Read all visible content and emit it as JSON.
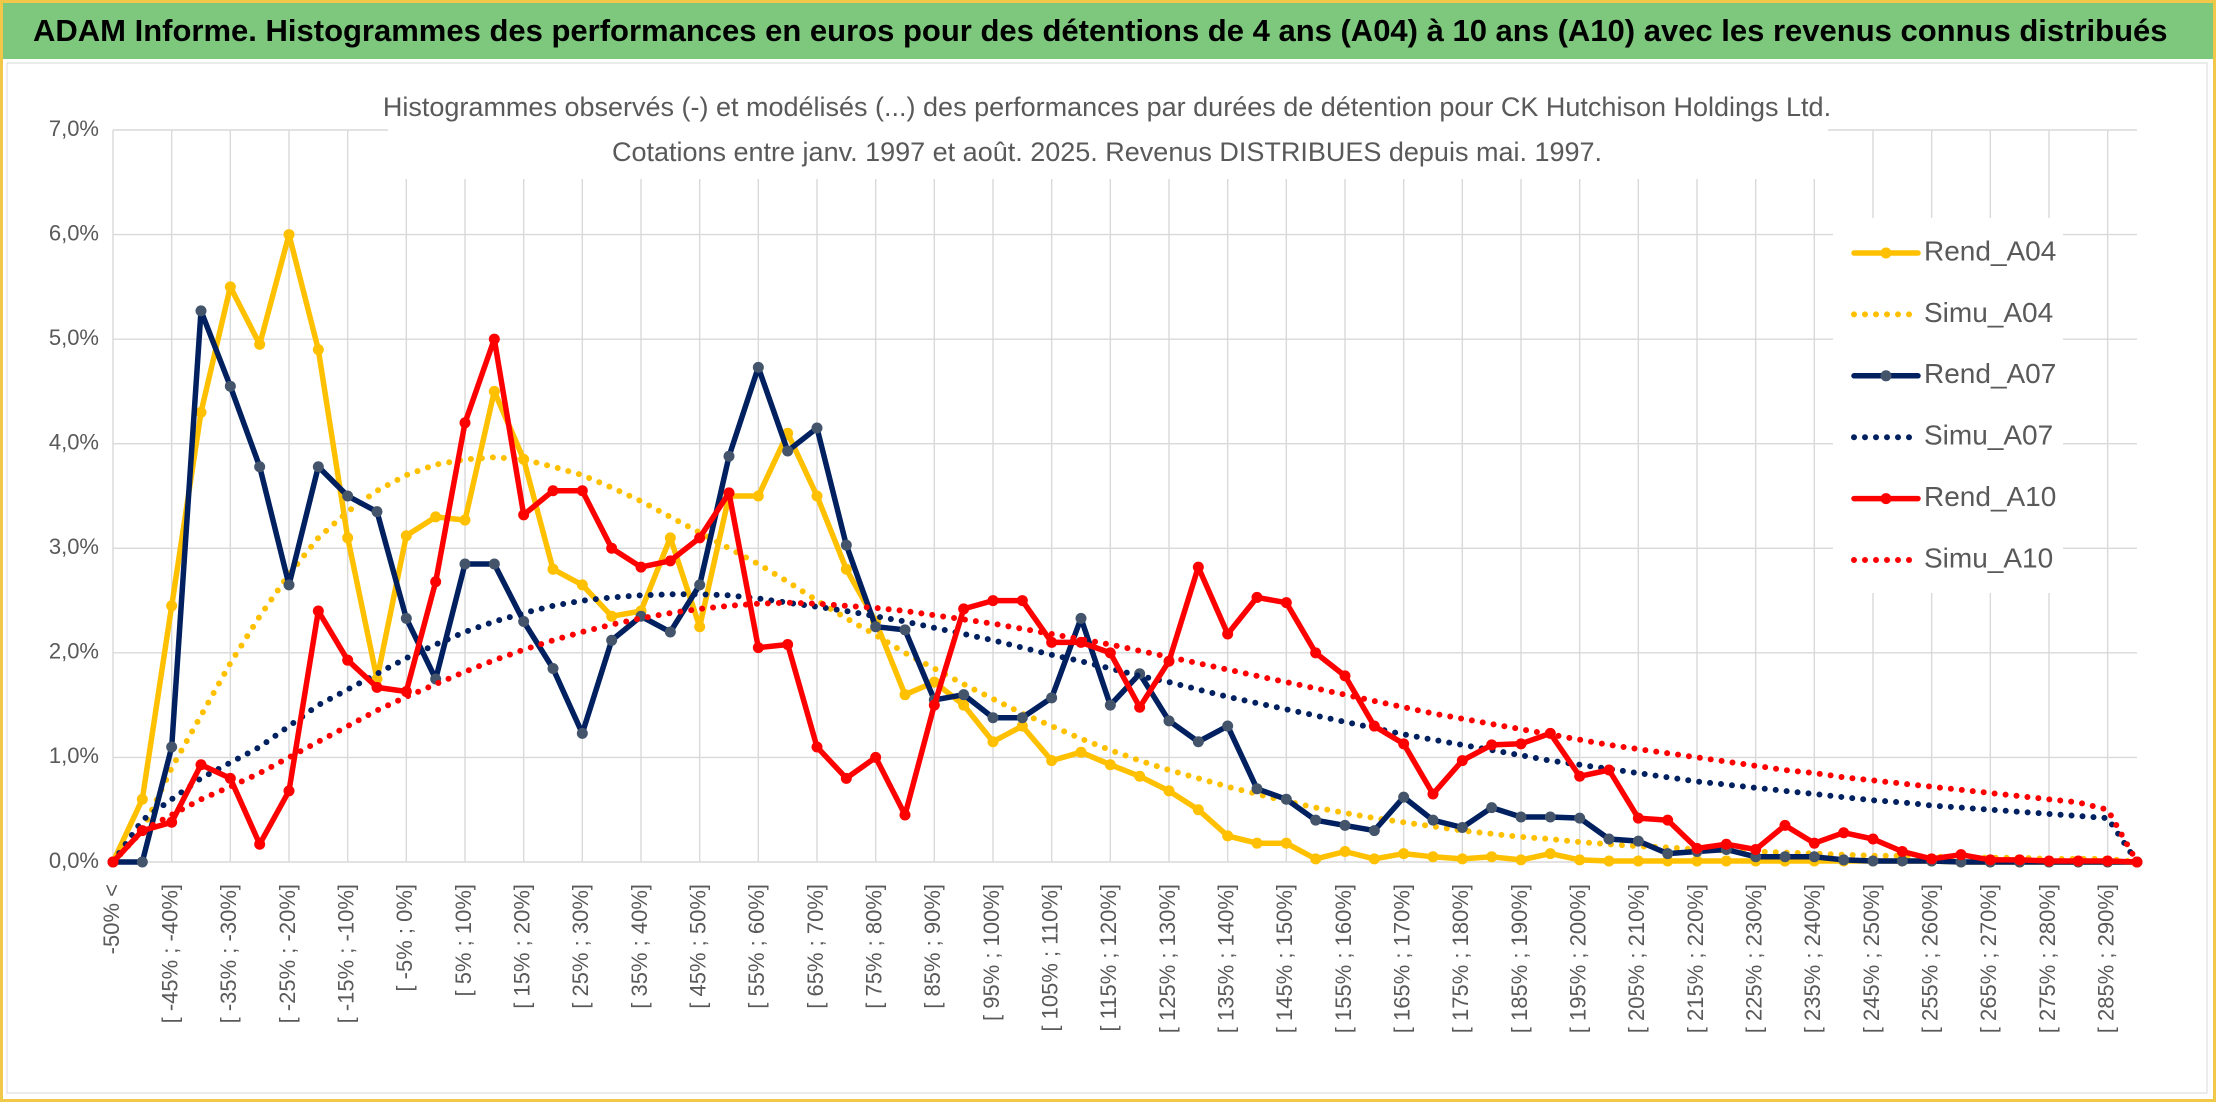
{
  "header": {
    "title": "ADAM Informe. Histogrammes des performances en euros pour des détentions de 4 ans (A04) à 10 ans (A10) avec les revenus connus distribués"
  },
  "chart_data": {
    "type": "line",
    "title": "Histogrammes observés (-) et modélisés (...) des performances par durées de détention pour CK Hutchison Holdings Ltd.",
    "subtitle": "Cotations entre janv. 1997 et août. 2025. Revenus DISTRIBUES depuis mai. 1997.",
    "categories": [
      "-50% <",
      null,
      "[ -45% ; -40%]",
      null,
      "[ -35% ; -30%]",
      null,
      "[ -25% ; -20%]",
      null,
      "[ -15% ; -10%]",
      null,
      "[ -5% ; 0%]",
      null,
      "[ 5% ; 10%]",
      null,
      "[ 15% ; 20%]",
      null,
      "[ 25% ; 30%]",
      null,
      "[ 35% ; 40%]",
      null,
      "[ 45% ; 50%]",
      null,
      "[ 55% ; 60%]",
      null,
      "[ 65% ; 70%]",
      null,
      "[ 75% ; 80%]",
      null,
      "[ 85% ; 90%]",
      null,
      "[ 95% ; 100%]",
      null,
      "[ 105% ; 110%]",
      null,
      "[ 115% ; 120%]",
      null,
      "[ 125% ; 130%]",
      null,
      "[ 135% ; 140%]",
      null,
      "[ 145% ; 150%]",
      null,
      "[ 155% ; 160%]",
      null,
      "[ 165% ; 170%]",
      null,
      "[ 175% ; 180%]",
      null,
      "[ 185% ; 190%]",
      null,
      "[ 195% ; 200%]",
      null,
      "[ 205% ; 210%]",
      null,
      "[ 215% ; 220%]",
      null,
      "[ 225% ; 230%]",
      null,
      "[ 235% ; 240%]",
      null,
      "[ 245% ; 250%]",
      null,
      "[ 255% ; 260%]",
      null,
      "[ 265% ; 270%]",
      null,
      "[ 275% ; 280%]",
      null,
      "[ 285% ; 290%]",
      null
    ],
    "series": [
      {
        "name": "Rend_A04",
        "color": "#FFC000",
        "style": "solid",
        "values": [
          0,
          0.6,
          2.45,
          4.3,
          5.5,
          4.95,
          6.0,
          4.9,
          3.1,
          1.75,
          3.12,
          3.3,
          3.27,
          4.5,
          3.85,
          2.8,
          2.65,
          2.35,
          2.4,
          3.1,
          2.25,
          3.5,
          3.5,
          4.1,
          3.5,
          2.8,
          2.3,
          1.6,
          1.72,
          1.5,
          1.15,
          1.3,
          0.97,
          1.05,
          0.93,
          0.82,
          0.68,
          0.5,
          0.25,
          0.18,
          0.18,
          0.03,
          0.1,
          0.03,
          0.08,
          0.05,
          0.03,
          0.05,
          0.02,
          0.08,
          0.02,
          0.01,
          0.01,
          0.01,
          0.01,
          0.01,
          0.01,
          0.01,
          0.01,
          0.01,
          0.01,
          0.01,
          0.01,
          0,
          0,
          0,
          0,
          0,
          0,
          0
        ]
      },
      {
        "name": "Simu_A04",
        "color": "#FFC000",
        "style": "dotted",
        "values": [
          0,
          0.3,
          0.9,
          1.4,
          1.9,
          2.35,
          2.75,
          3.1,
          3.35,
          3.55,
          3.7,
          3.8,
          3.85,
          3.87,
          3.85,
          3.78,
          3.7,
          3.58,
          3.45,
          3.3,
          3.15,
          3.0,
          2.85,
          2.68,
          2.5,
          2.33,
          2.17,
          2.0,
          1.85,
          1.7,
          1.56,
          1.42,
          1.3,
          1.18,
          1.07,
          0.97,
          0.88,
          0.8,
          0.72,
          0.65,
          0.58,
          0.52,
          0.47,
          0.42,
          0.38,
          0.34,
          0.3,
          0.27,
          0.24,
          0.22,
          0.19,
          0.17,
          0.15,
          0.14,
          0.12,
          0.11,
          0.1,
          0.09,
          0.08,
          0.07,
          0.06,
          0.06,
          0.05,
          0.05,
          0.04,
          0.04,
          0.03,
          0.03,
          0.03,
          0
        ]
      },
      {
        "name": "Rend_A07",
        "color": "#002060",
        "style": "solid",
        "values": [
          0,
          0,
          1.1,
          5.27,
          4.55,
          3.78,
          2.65,
          3.78,
          3.5,
          3.35,
          2.33,
          1.75,
          2.85,
          2.85,
          2.3,
          1.85,
          1.23,
          2.12,
          2.35,
          2.2,
          2.65,
          3.88,
          4.73,
          3.93,
          4.15,
          3.03,
          2.25,
          2.22,
          1.55,
          1.6,
          1.38,
          1.38,
          1.57,
          2.33,
          1.5,
          1.8,
          1.35,
          1.15,
          1.3,
          0.7,
          0.6,
          0.4,
          0.35,
          0.3,
          0.62,
          0.4,
          0.33,
          0.52,
          0.43,
          0.43,
          0.42,
          0.22,
          0.2,
          0.08,
          0.1,
          0.12,
          0.05,
          0.05,
          0.05,
          0.02,
          0.01,
          0.01,
          0.01,
          0,
          0,
          0,
          0,
          0,
          0,
          0
        ]
      },
      {
        "name": "Simu_A07",
        "color": "#002060",
        "style": "dotted",
        "values": [
          0,
          0.4,
          0.6,
          0.8,
          0.95,
          1.1,
          1.3,
          1.5,
          1.65,
          1.8,
          1.95,
          2.08,
          2.2,
          2.3,
          2.38,
          2.45,
          2.5,
          2.53,
          2.55,
          2.56,
          2.56,
          2.55,
          2.52,
          2.48,
          2.44,
          2.4,
          2.35,
          2.3,
          2.24,
          2.18,
          2.12,
          2.05,
          1.98,
          1.92,
          1.85,
          1.78,
          1.72,
          1.65,
          1.58,
          1.52,
          1.46,
          1.4,
          1.34,
          1.28,
          1.22,
          1.17,
          1.12,
          1.07,
          1.02,
          0.97,
          0.93,
          0.89,
          0.85,
          0.81,
          0.77,
          0.74,
          0.71,
          0.68,
          0.65,
          0.62,
          0.59,
          0.57,
          0.54,
          0.52,
          0.5,
          0.48,
          0.46,
          0.44,
          0.42,
          0
        ]
      },
      {
        "name": "Rend_A10",
        "color": "#FF0000",
        "style": "solid",
        "values": [
          0,
          0.3,
          0.38,
          0.93,
          0.8,
          0.17,
          0.68,
          2.4,
          1.93,
          1.67,
          1.63,
          2.68,
          4.2,
          5.0,
          3.32,
          3.55,
          3.55,
          3.0,
          2.82,
          2.88,
          3.1,
          3.53,
          2.05,
          2.08,
          1.1,
          0.8,
          1.0,
          0.45,
          1.5,
          2.42,
          2.5,
          2.5,
          2.1,
          2.1,
          2.0,
          1.48,
          1.92,
          2.82,
          2.18,
          2.53,
          2.48,
          2.0,
          1.78,
          1.3,
          1.13,
          0.65,
          0.97,
          1.12,
          1.13,
          1.23,
          0.82,
          0.88,
          0.42,
          0.4,
          0.13,
          0.17,
          0.12,
          0.35,
          0.18,
          0.28,
          0.22,
          0.1,
          0.03,
          0.07,
          0.02,
          0.02,
          0.01,
          0.01,
          0.01,
          0
        ]
      },
      {
        "name": "Simu_A10",
        "color": "#FF0000",
        "style": "dotted",
        "values": [
          0,
          0.3,
          0.45,
          0.6,
          0.72,
          0.85,
          1.0,
          1.15,
          1.3,
          1.45,
          1.58,
          1.7,
          1.82,
          1.93,
          2.03,
          2.12,
          2.2,
          2.27,
          2.33,
          2.38,
          2.42,
          2.45,
          2.47,
          2.48,
          2.47,
          2.45,
          2.43,
          2.4,
          2.36,
          2.32,
          2.28,
          2.23,
          2.18,
          2.13,
          2.08,
          2.02,
          1.96,
          1.9,
          1.84,
          1.78,
          1.72,
          1.66,
          1.6,
          1.54,
          1.48,
          1.42,
          1.37,
          1.32,
          1.27,
          1.22,
          1.17,
          1.12,
          1.08,
          1.04,
          1.0,
          0.96,
          0.92,
          0.88,
          0.85,
          0.81,
          0.78,
          0.75,
          0.72,
          0.69,
          0.66,
          0.63,
          0.6,
          0.57,
          0.5,
          0
        ]
      }
    ],
    "ylim": [
      0,
      7
    ],
    "yticks": [
      {
        "value": 0,
        "label": "0,0%"
      },
      {
        "value": 1,
        "label": "1,0%"
      },
      {
        "value": 2,
        "label": "2,0%"
      },
      {
        "value": 3,
        "label": "3,0%"
      },
      {
        "value": 4,
        "label": "4,0%"
      },
      {
        "value": 5,
        "label": "5,0%"
      },
      {
        "value": 6,
        "label": "6,0%"
      },
      {
        "value": 7,
        "label": "7,0%"
      }
    ],
    "grid": true,
    "legend": "right"
  }
}
